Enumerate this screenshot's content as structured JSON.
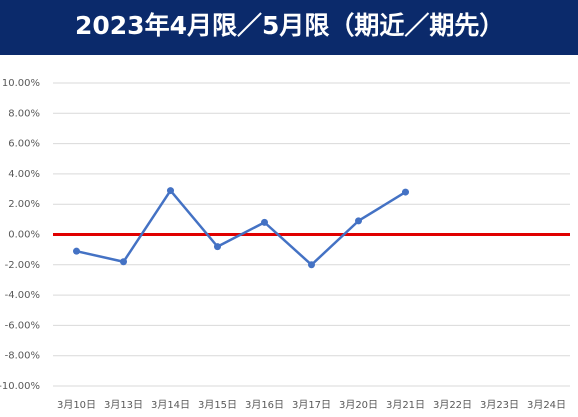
{
  "chart_data": {
    "type": "line",
    "title": "2023年4月限／5月限（期近／期先）",
    "categories": [
      "3月10日",
      "3月13日",
      "3月14日",
      "3月15日",
      "3月16日",
      "3月17日",
      "3月20日",
      "3月21日",
      "3月22日",
      "3月23日",
      "3月24日"
    ],
    "series": [
      {
        "color": "#4472c4",
        "values": [
          -1.1,
          -1.8,
          2.9,
          -0.8,
          0.8,
          -2.0,
          0.9,
          2.8,
          null,
          null,
          null
        ]
      }
    ],
    "ylim": [
      -10,
      10
    ],
    "yticks": [
      {
        "value": -10,
        "label": "-10.00%"
      },
      {
        "value": -8,
        "label": "-8.00%"
      },
      {
        "value": -6,
        "label": "-6.00%"
      },
      {
        "value": -4,
        "label": "-4.00%"
      },
      {
        "value": -2,
        "label": "-2.00%"
      },
      {
        "value": 0,
        "label": "0.00%"
      },
      {
        "value": 2,
        "label": "2.00%"
      },
      {
        "value": 4,
        "label": "4.00%"
      },
      {
        "value": 6,
        "label": "6.00%"
      },
      {
        "value": 8,
        "label": "8.00%"
      },
      {
        "value": 10,
        "label": "10.00%"
      }
    ],
    "grid": true,
    "reference_line": {
      "value": 0,
      "color": "#e00000"
    }
  }
}
